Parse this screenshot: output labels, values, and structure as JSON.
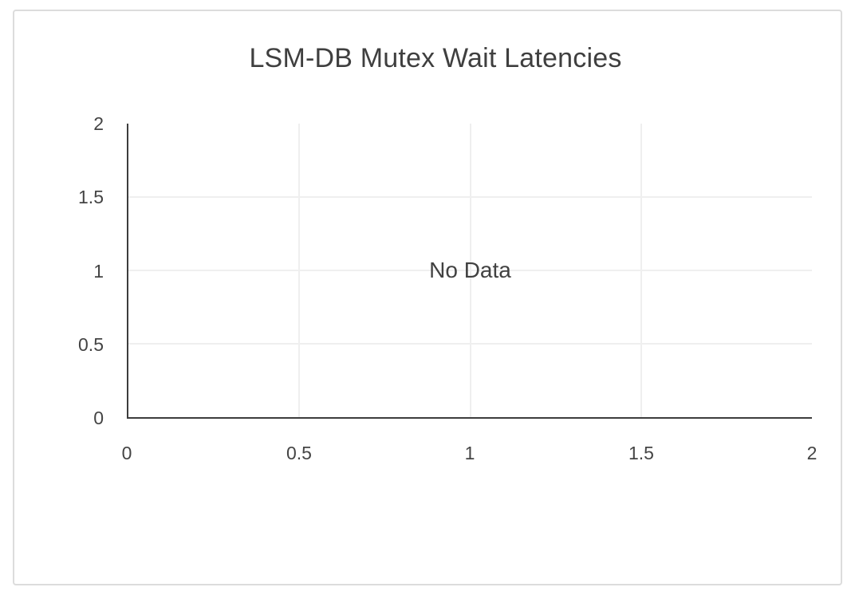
{
  "page": {
    "background_color": "#ffffff",
    "card_border_color": "#dcdcdc"
  },
  "chart": {
    "title": "LSM-DB Mutex Wait Latencies",
    "no_data_text": "No Data",
    "x_ticks": [
      "0",
      "0.5",
      "1",
      "1.5",
      "2"
    ],
    "y_ticks_top_down": [
      "2",
      "1.5",
      "1",
      "0.5",
      "0"
    ],
    "colors": {
      "title_text": "#3f3f3f",
      "tick_text": "#444444",
      "axis_line": "#3d3d3d",
      "gridline": "#efefef"
    }
  },
  "chart_data": {
    "type": "scatter",
    "title": "LSM-DB Mutex Wait Latencies",
    "series": [],
    "annotation": "No Data",
    "empty": true,
    "xlabel": "",
    "ylabel": "",
    "xlim": [
      0,
      2
    ],
    "ylim": [
      0,
      2
    ],
    "x_tick_values": [
      0,
      0.5,
      1,
      1.5,
      2
    ],
    "y_tick_values": [
      0,
      0.5,
      1,
      1.5,
      2
    ],
    "grid": true,
    "gridlines_x": [
      0.5,
      1,
      1.5
    ],
    "gridlines_y": [
      0.5,
      1,
      1.5
    ],
    "legend_visible": false
  }
}
